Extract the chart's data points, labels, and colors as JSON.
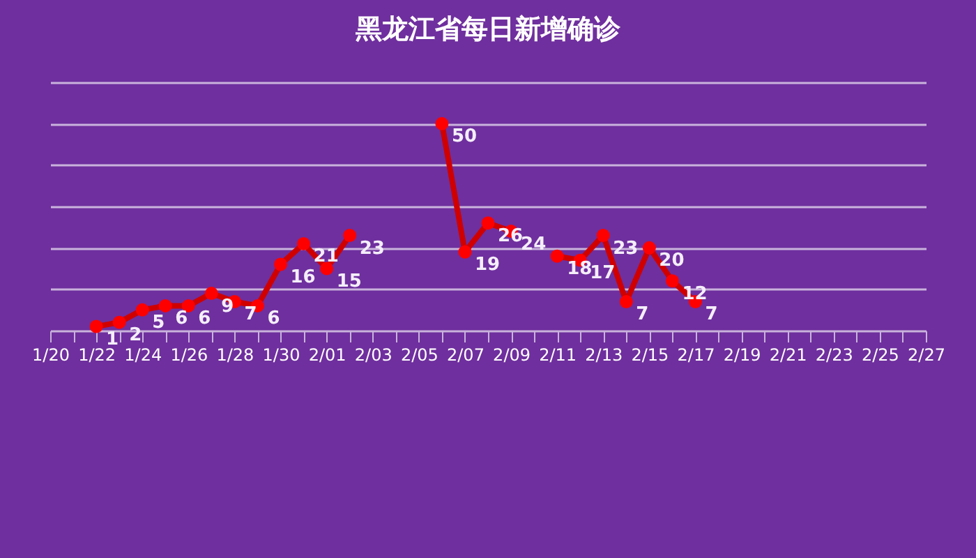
{
  "chart_data": {
    "type": "line",
    "title": "黑龙江省每日新增确诊",
    "x": [
      "--01-22",
      "--01-23",
      "--01-24",
      "--01-25",
      "--01-26",
      "--01-27",
      "--01-28",
      "--01-29",
      "--01-30",
      "--01-31",
      "--02-01",
      "--02-02",
      "--02-03",
      "--02-04",
      "--02-05",
      "--02-06",
      "--02-07",
      "--02-08",
      "--02-09",
      "--02-10",
      "--02-11",
      "--02-12",
      "--02-13",
      "--02-14",
      "--02-15",
      "--02-16",
      "--02-17"
    ],
    "series": [
      {
        "color": "#d00000",
        "values": [
          1,
          2,
          5,
          6,
          6,
          9,
          7,
          6,
          16,
          21,
          15,
          23,
          null,
          null,
          null,
          50,
          19,
          26,
          24,
          null,
          18,
          17,
          23,
          7,
          20,
          12,
          7
        ]
      }
    ],
    "data_labels": true,
    "marker": "circle",
    "line_style": "solid",
    "xlim": [
      "--01-20",
      "--02-27"
    ],
    "xticks": [
      {
        "value": "--01-20",
        "label": "1/20"
      },
      {
        "value": "--01-21",
        "label": null
      },
      {
        "value": "--01-22",
        "label": "1/22"
      },
      {
        "value": "--01-23",
        "label": null
      },
      {
        "value": "--01-24",
        "label": "1/24"
      },
      {
        "value": "--01-25",
        "label": null
      },
      {
        "value": "--01-26",
        "label": "1/26"
      },
      {
        "value": "--01-27",
        "label": null
      },
      {
        "value": "--01-28",
        "label": "1/28"
      },
      {
        "value": "--01-29",
        "label": null
      },
      {
        "value": "--01-30",
        "label": "1/30"
      },
      {
        "value": "--01-31",
        "label": null
      },
      {
        "value": "--02-01",
        "label": "2/01"
      },
      {
        "value": "--02-02",
        "label": null
      },
      {
        "value": "--02-03",
        "label": "2/03"
      },
      {
        "value": "--02-04",
        "label": null
      },
      {
        "value": "--02-05",
        "label": "2/05"
      },
      {
        "value": "--02-06",
        "label": null
      },
      {
        "value": "--02-07",
        "label": "2/07"
      },
      {
        "value": "--02-08",
        "label": null
      },
      {
        "value": "--02-09",
        "label": "2/09"
      },
      {
        "value": "--02-10",
        "label": null
      },
      {
        "value": "--02-11",
        "label": "2/11"
      },
      {
        "value": "--02-12",
        "label": null
      },
      {
        "value": "--02-13",
        "label": "2/13"
      },
      {
        "value": "--02-14",
        "label": null
      },
      {
        "value": "--02-15",
        "label": "2/15"
      },
      {
        "value": "--02-16",
        "label": null
      },
      {
        "value": "--02-17",
        "label": "2/17"
      },
      {
        "value": "--02-18",
        "label": null
      },
      {
        "value": "--02-19",
        "label": "2/19"
      },
      {
        "value": "--02-20",
        "label": null
      },
      {
        "value": "--02-21",
        "label": "2/21"
      },
      {
        "value": "--02-22",
        "label": null
      },
      {
        "value": "--02-23",
        "label": "2/23"
      },
      {
        "value": "--02-24",
        "label": null
      },
      {
        "value": "--02-25",
        "label": "2/25"
      },
      {
        "value": "--02-26",
        "label": null
      },
      {
        "value": "--02-27",
        "label": "2/27"
      }
    ],
    "ylim": [
      0,
      60
    ],
    "yticks": [
      0,
      10,
      20,
      30,
      40,
      50,
      60
    ],
    "grid": "y",
    "tick_labels": "x"
  }
}
